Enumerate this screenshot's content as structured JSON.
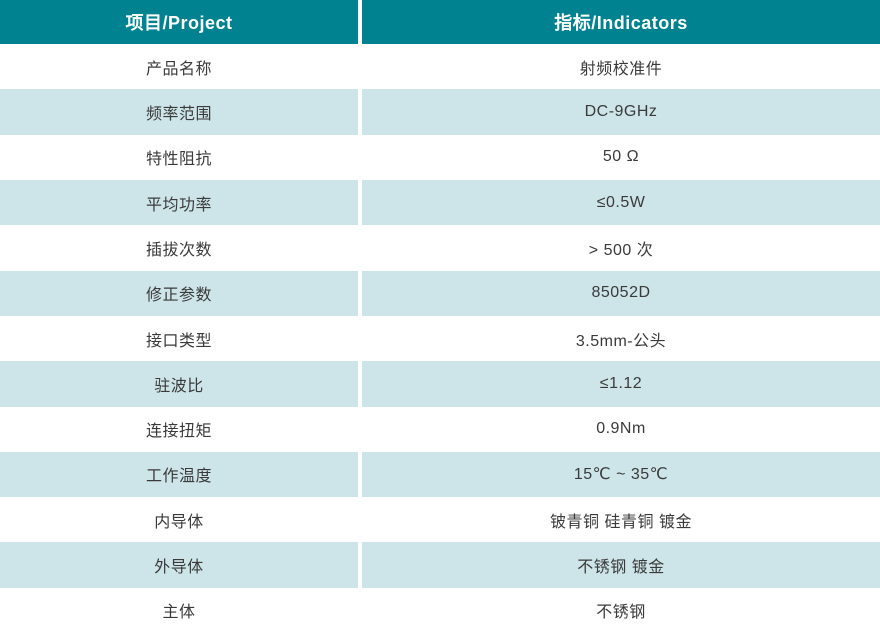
{
  "table": {
    "columns": [
      {
        "label": "项目/Project"
      },
      {
        "label": "指标/Indicators"
      }
    ],
    "rows": [
      {
        "project": "产品名称",
        "indicator": "射频校准件"
      },
      {
        "project": "频率范围",
        "indicator": "DC-9GHz"
      },
      {
        "project": "特性阻抗",
        "indicator": "50 Ω"
      },
      {
        "project": "平均功率",
        "indicator": "≤0.5W"
      },
      {
        "project": "插拔次数",
        "indicator": "> 500 次"
      },
      {
        "project": "修正参数",
        "indicator": "85052D"
      },
      {
        "project": "接口类型",
        "indicator": "3.5mm-公头"
      },
      {
        "project": "驻波比",
        "indicator": "≤1.12"
      },
      {
        "project": "连接扭矩",
        "indicator": "0.9Nm"
      },
      {
        "project": "工作温度",
        "indicator": "15℃ ~ 35℃"
      },
      {
        "project": "内导体",
        "indicator": "铍青铜 硅青铜 镀金"
      },
      {
        "project": "外导体",
        "indicator": "不锈钢 镀金"
      },
      {
        "project": "主体",
        "indicator": "不锈钢"
      }
    ]
  },
  "colors": {
    "header_bg": "#008291",
    "stripe_bg": "#cde5e9",
    "text": "#3a3a3a",
    "header_text": "#ffffff"
  }
}
